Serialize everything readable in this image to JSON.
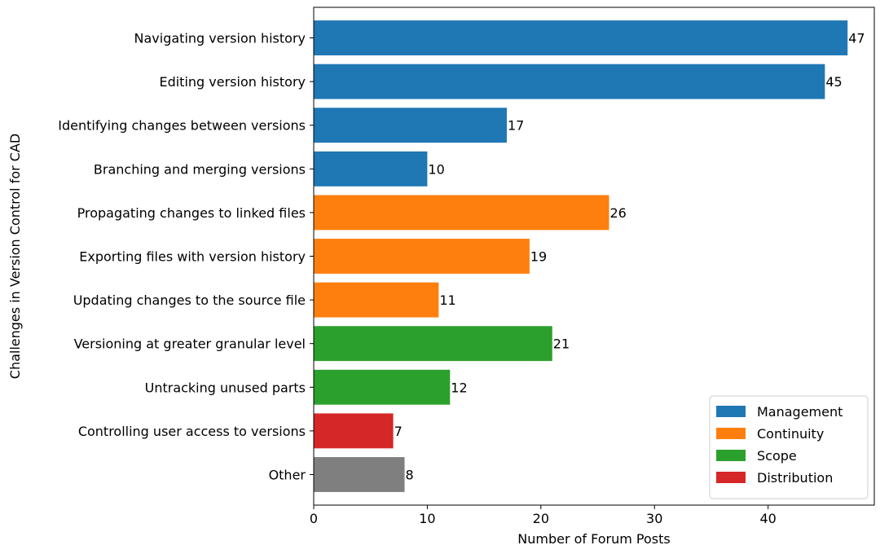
{
  "chart_data": {
    "type": "bar",
    "orientation": "horizontal",
    "xlabel": "Number of Forum Posts",
    "ylabel": "Challenges in Version Control for CAD",
    "xlim": [
      0,
      49.35
    ],
    "xticks": [
      0,
      10,
      20,
      30,
      40
    ],
    "grid": false,
    "legend_position": "bottom-right",
    "categories": [
      "Navigating version history",
      "Editing version history",
      "Identifying changes between versions",
      "Branching and merging versions",
      "Propagating changes to linked files",
      "Exporting files with version history",
      "Updating changes to the source file",
      "Versioning at greater granular level",
      "Untracking unused parts",
      "Controlling user access to versions",
      "Other"
    ],
    "values": [
      47,
      45,
      17,
      10,
      26,
      19,
      11,
      21,
      12,
      7,
      8
    ],
    "groups": [
      "Management",
      "Management",
      "Management",
      "Management",
      "Continuity",
      "Continuity",
      "Continuity",
      "Scope",
      "Scope",
      "Distribution",
      "Other"
    ],
    "legend": [
      {
        "name": "Management",
        "color": "#1f77b4"
      },
      {
        "name": "Continuity",
        "color": "#ff7f0e"
      },
      {
        "name": "Scope",
        "color": "#2ca02c"
      },
      {
        "name": "Distribution",
        "color": "#d62728"
      }
    ],
    "other_color": "#7f7f7f"
  }
}
